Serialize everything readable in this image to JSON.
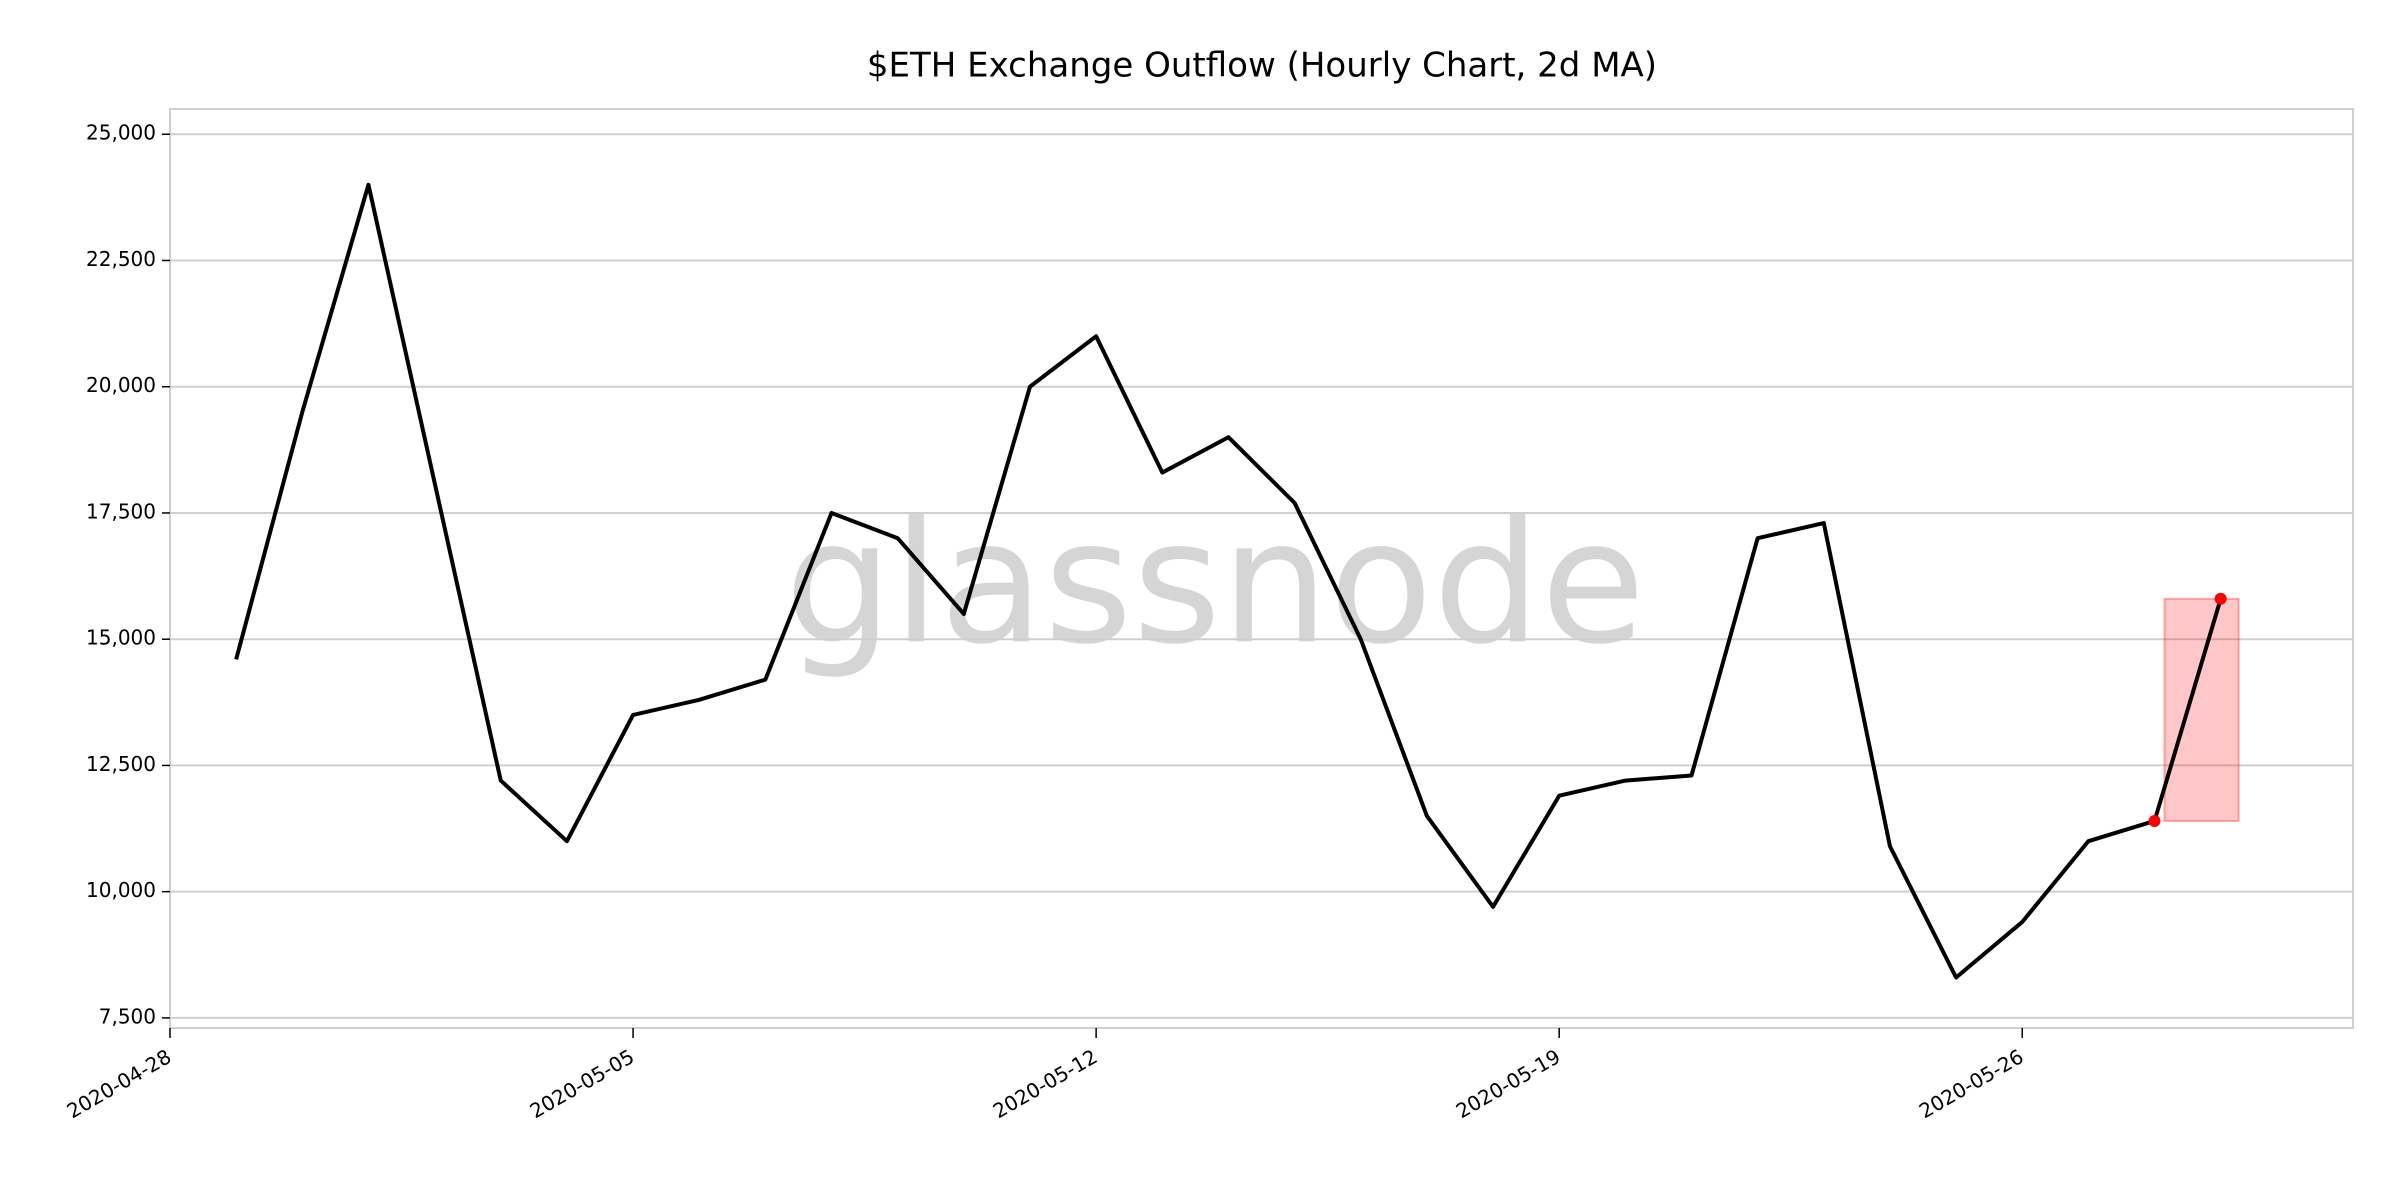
{
  "chart_data": {
    "type": "line",
    "title": "$ETH Exchange Outflow (Hourly Chart, 2d MA)",
    "watermark": "glassnode",
    "x": [
      "2020-04-29",
      "2020-04-30",
      "2020-05-01",
      "2020-05-02",
      "2020-05-03",
      "2020-05-04",
      "2020-05-05",
      "2020-05-06",
      "2020-05-07",
      "2020-05-08",
      "2020-05-09",
      "2020-05-10",
      "2020-05-11",
      "2020-05-12",
      "2020-05-13",
      "2020-05-14",
      "2020-05-15",
      "2020-05-16",
      "2020-05-17",
      "2020-05-18",
      "2020-05-19",
      "2020-05-20",
      "2020-05-21",
      "2020-05-22",
      "2020-05-23",
      "2020-05-24",
      "2020-05-25",
      "2020-05-26",
      "2020-05-27",
      "2020-05-28",
      "2020-05-29"
    ],
    "series": [
      {
        "name": "ETH Exchange Outflow",
        "color": "#000000",
        "values": [
          14600,
          19500,
          24000,
          18100,
          12200,
          11000,
          13500,
          13800,
          14200,
          17500,
          17000,
          15500,
          20000,
          21000,
          18300,
          19000,
          17700,
          15000,
          11500,
          9700,
          11900,
          12200,
          12300,
          17000,
          17300,
          10900,
          8300,
          9400,
          11000,
          11400,
          15800
        ]
      }
    ],
    "highlight_color": "#ff0000",
    "xlim": [
      "2020-04-28",
      "2020-05-31"
    ],
    "xticks": [
      "2020-04-28",
      "2020-05-05",
      "2020-05-12",
      "2020-05-19",
      "2020-05-26"
    ],
    "ylim": [
      7300,
      25500
    ],
    "yticks": [
      {
        "value": 7500,
        "label": "7,500"
      },
      {
        "value": 10000,
        "label": "10,000"
      },
      {
        "value": 12500,
        "label": "12,500"
      },
      {
        "value": 15000,
        "label": "15,000"
      },
      {
        "value": 17500,
        "label": "17,500"
      },
      {
        "value": 20000,
        "label": "20,000"
      },
      {
        "value": 22500,
        "label": "22,500"
      },
      {
        "value": 25000,
        "label": "25,000"
      }
    ],
    "grid": true
  }
}
